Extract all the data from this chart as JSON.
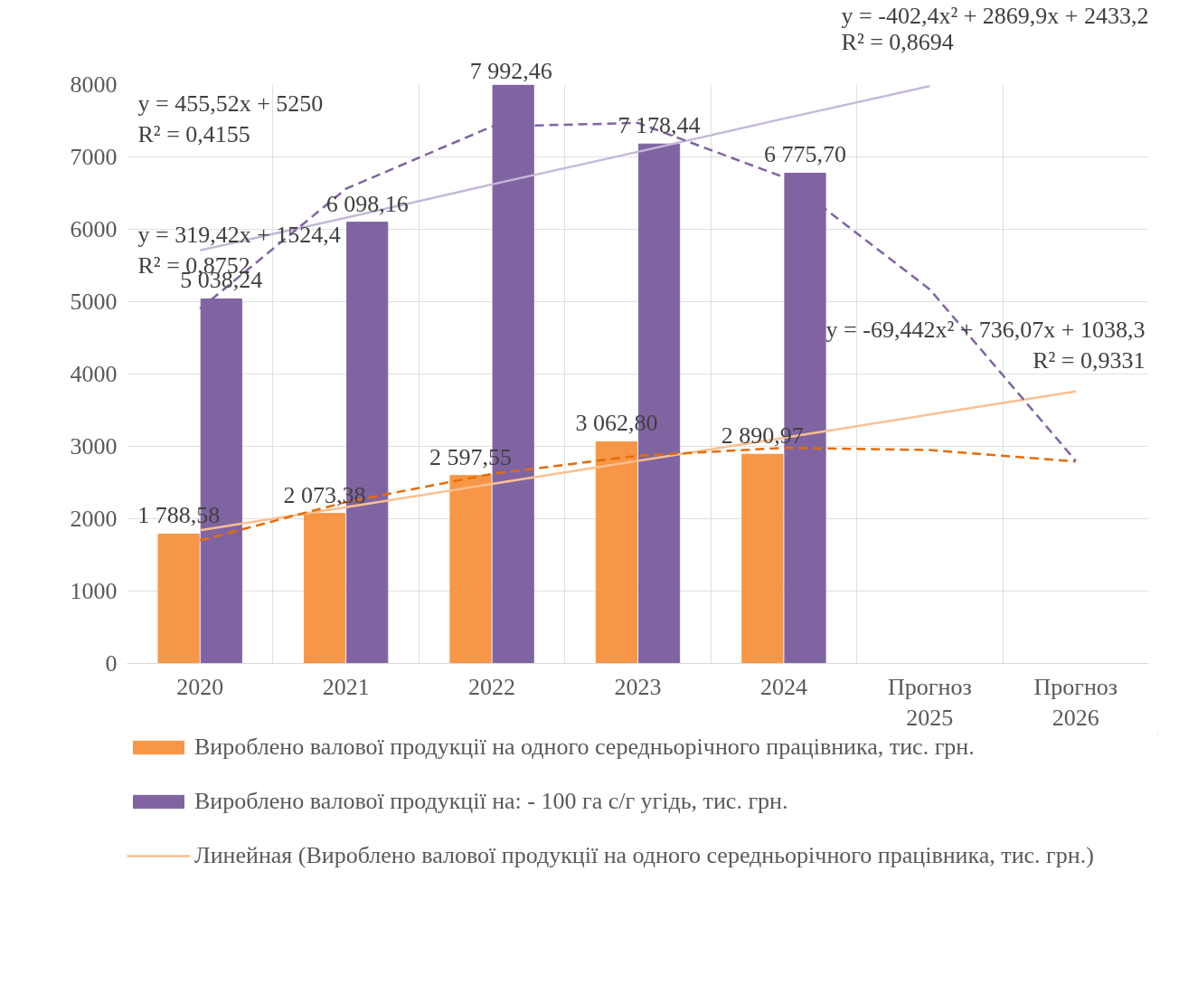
{
  "chart_data": {
    "type": "bar",
    "categories": [
      "2020",
      "2021",
      "2022",
      "2023",
      "2024",
      "Прогноз\n2025",
      "Прогноз\n2026"
    ],
    "ylim": [
      0,
      8000
    ],
    "yticks": [
      0,
      1000,
      2000,
      3000,
      4000,
      5000,
      6000,
      7000,
      8000
    ],
    "grid": true,
    "legend": "bottom",
    "series": [
      {
        "name": "Вироблено валової продукції на одного середньорічного працівника, тис. грн.",
        "color": "#f79646",
        "values": [
          1788.58,
          2073.38,
          2597.55,
          3062.8,
          2890.97,
          null,
          null
        ],
        "value_labels": [
          "1 788,58",
          "2 073,38",
          "2 597,55",
          "3 062,80",
          "2 890,97",
          null,
          null
        ]
      },
      {
        "name": "Вироблено валової продукції на: - 100 га с/г угідь, тис. грн.",
        "color": "#8064a2",
        "values": [
          5038.24,
          6098.16,
          7992.46,
          7178.44,
          6775.7,
          null,
          null
        ],
        "value_labels": [
          "5 038,24",
          "6 098,16",
          "7 992,46",
          "7 178,44",
          "6 775,70",
          null,
          null
        ]
      },
      {
        "name": "Линейная (Вироблено валової продукції на одного середньорічного працівника, тис. грн.)",
        "type": "line",
        "color": "#fac090",
        "line_style": "solid",
        "values": [
          1840,
          2160,
          2480,
          2800,
          3120,
          3440,
          3760
        ]
      },
      {
        "type": "line",
        "color": "#e46c0a",
        "line_style": "dashed",
        "values": [
          1700,
          2230,
          2620,
          2870,
          2980,
          2950,
          2790
        ]
      },
      {
        "type": "line",
        "color": "#c5b8d8",
        "line_style": "solid",
        "values": [
          5710,
          6160,
          6620,
          7070,
          7530,
          7980,
          null
        ]
      },
      {
        "type": "line",
        "color": "#8064a2",
        "line_style": "dashed",
        "values": [
          4900,
          6560,
          7420,
          7470,
          6720,
          5170,
          2800
        ]
      }
    ],
    "annotations": [
      "y = 455,52x + 5250\nR² = 0,4155",
      "y = 319,42x + 1524,4\nR² = 0,8752",
      "y = -402,4x² + 2869,9x + 2433,2\nR² = 0,8694",
      "y = -69,442x² + 736,07x + 1038,3\nR² = 0,9331"
    ]
  }
}
